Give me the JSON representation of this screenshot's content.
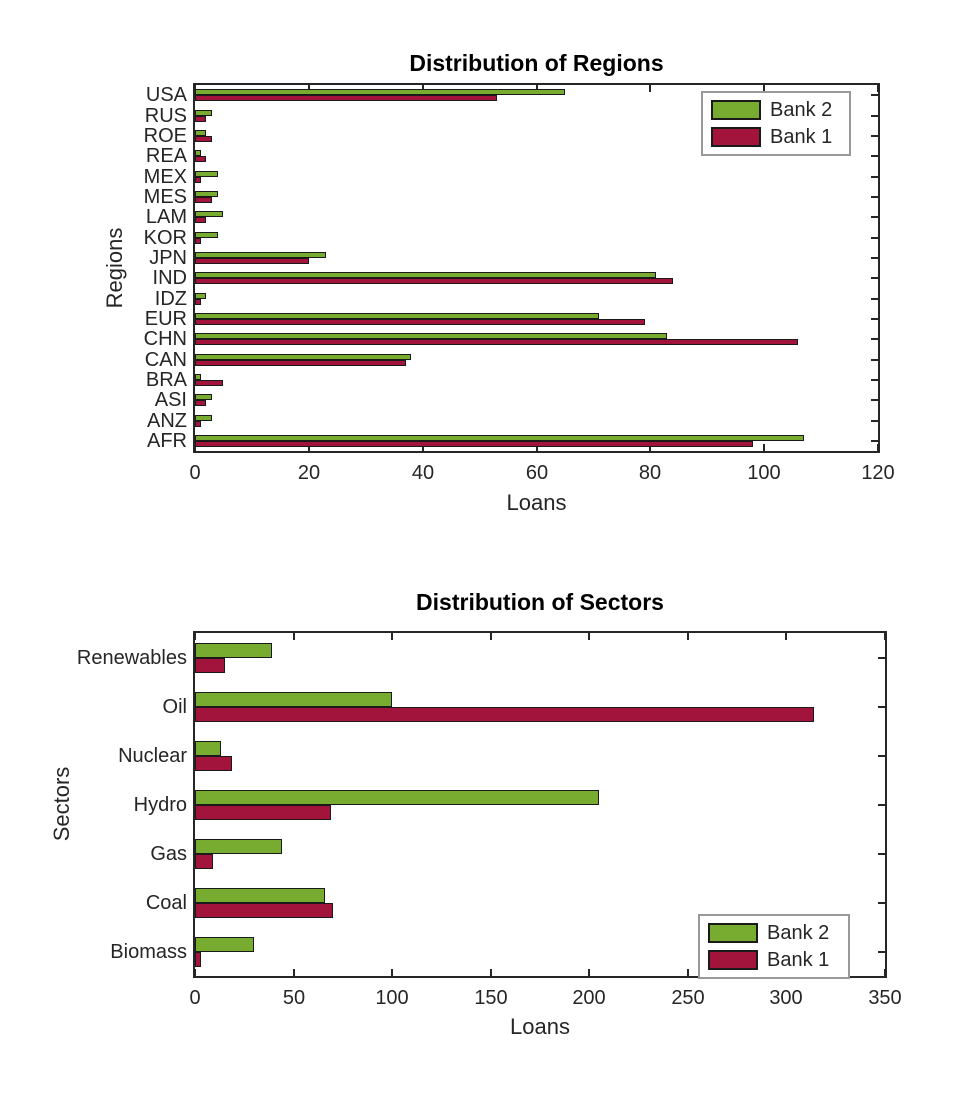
{
  "colors": {
    "bank2": "#77AC30",
    "bank1": "#A2143C",
    "bar_edge": "#1A1A1A",
    "axis": "#262626",
    "text": "#262626",
    "background": "#FFFFFF",
    "legend_border": "#999999"
  },
  "chart_data": [
    {
      "type": "bar",
      "orientation": "horizontal",
      "grouped": true,
      "title": "Distribution of Regions",
      "xlabel": "Loans",
      "ylabel": "Regions",
      "xlim": [
        0,
        120
      ],
      "xticks": [
        0,
        20,
        40,
        60,
        80,
        100,
        120
      ],
      "grid": false,
      "legend_position": "top-right",
      "categories": [
        "USA",
        "RUS",
        "ROE",
        "REA",
        "MEX",
        "MES",
        "LAM",
        "KOR",
        "JPN",
        "IND",
        "IDZ",
        "EUR",
        "CHN",
        "CAN",
        "BRA",
        "ASI",
        "ANZ",
        "AFR"
      ],
      "series": [
        {
          "name": "Bank 2",
          "color_key": "bank2",
          "values": [
            65,
            3,
            2,
            1,
            4,
            4,
            5,
            4,
            23,
            81,
            2,
            71,
            83,
            38,
            1,
            3,
            3,
            107
          ]
        },
        {
          "name": "Bank 1",
          "color_key": "bank1",
          "values": [
            53,
            2,
            3,
            2,
            1,
            3,
            2,
            1,
            20,
            84,
            1,
            79,
            106,
            37,
            5,
            2,
            1,
            98
          ]
        }
      ]
    },
    {
      "type": "bar",
      "orientation": "horizontal",
      "grouped": true,
      "title": "Distribution of Sectors",
      "xlabel": "Loans",
      "ylabel": "Sectors",
      "xlim": [
        0,
        350
      ],
      "xticks": [
        0,
        50,
        100,
        150,
        200,
        250,
        300,
        350
      ],
      "grid": false,
      "legend_position": "bottom-right",
      "categories": [
        "Renewables",
        "Oil",
        "Nuclear",
        "Hydro",
        "Gas",
        "Coal",
        "Biomass"
      ],
      "series": [
        {
          "name": "Bank 2",
          "color_key": "bank2",
          "values": [
            39,
            100,
            13,
            205,
            44,
            66,
            30
          ]
        },
        {
          "name": "Bank 1",
          "color_key": "bank1",
          "values": [
            15,
            314,
            19,
            69,
            9,
            70,
            3
          ]
        }
      ]
    }
  ]
}
